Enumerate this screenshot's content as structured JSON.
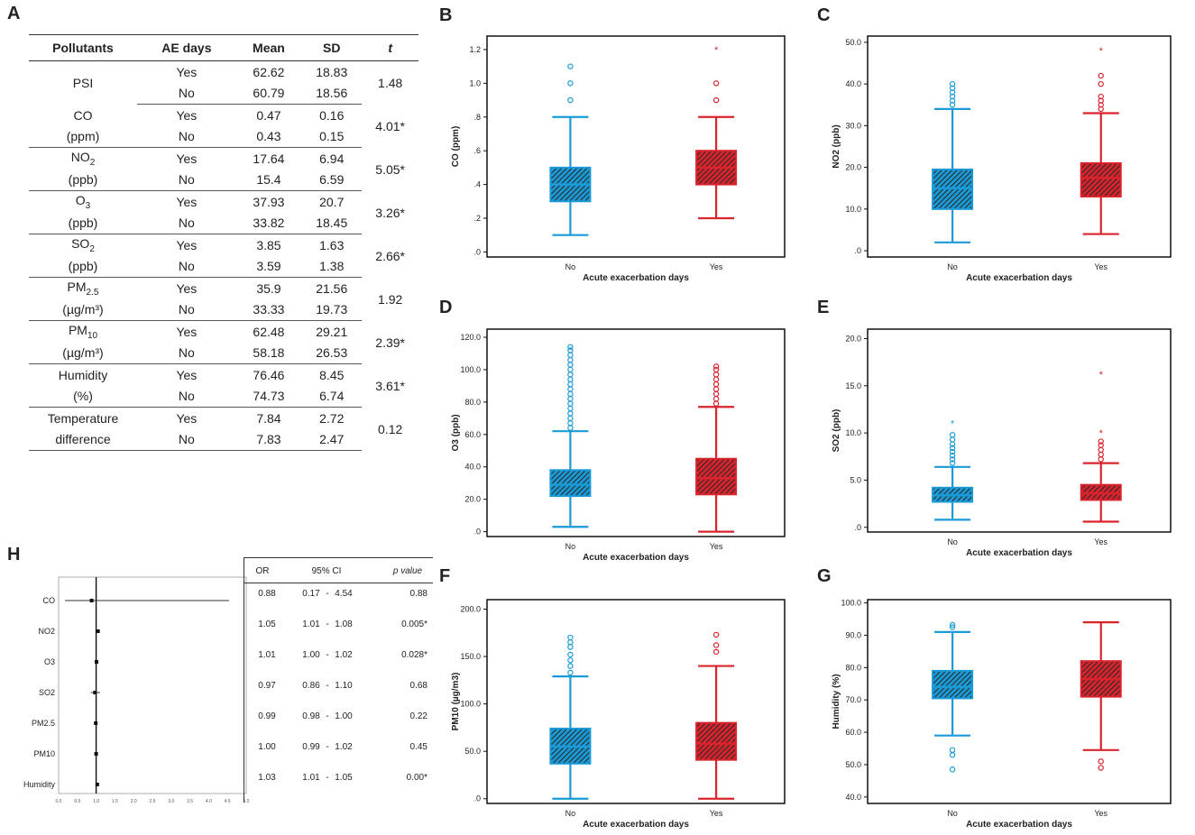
{
  "panels": {
    "A": "A",
    "B": "B",
    "C": "C",
    "D": "D",
    "E": "E",
    "F": "F",
    "G": "G",
    "H": "H"
  },
  "table": {
    "headers": [
      "Pollutants",
      "AE days",
      "Mean",
      "SD",
      "t"
    ],
    "rows": [
      {
        "name1": "PSI",
        "name2": "",
        "yes": [
          "Yes",
          "62.62",
          "18.83"
        ],
        "no": [
          "No",
          "60.79",
          "18.56"
        ],
        "t": "1.48"
      },
      {
        "name1": "CO",
        "name2": "(ppm)",
        "yes": [
          "Yes",
          "0.47",
          "0.16"
        ],
        "no": [
          "No",
          "0.43",
          "0.15"
        ],
        "t": "4.01*"
      },
      {
        "name1": "NO",
        "sub1": "2",
        "name2": "(ppb)",
        "yes": [
          "Yes",
          "17.64",
          "6.94"
        ],
        "no": [
          "No",
          "15.4",
          "6.59"
        ],
        "t": "5.05*"
      },
      {
        "name1": "O",
        "sub1": "3",
        "name2": "(ppb)",
        "yes": [
          "Yes",
          "37.93",
          "20.7"
        ],
        "no": [
          "No",
          "33.82",
          "18.45"
        ],
        "t": "3.26*"
      },
      {
        "name1": "SO",
        "sub1": "2",
        "name2": "(ppb)",
        "yes": [
          "Yes",
          "3.85",
          "1.63"
        ],
        "no": [
          "No",
          "3.59",
          "1.38"
        ],
        "t": "2.66*"
      },
      {
        "name1": "PM",
        "sub1": "2.5",
        "name2": "(µg/m³)",
        "yes": [
          "Yes",
          "35.9",
          "21.56"
        ],
        "no": [
          "No",
          "33.33",
          "19.73"
        ],
        "t": "1.92"
      },
      {
        "name1": "PM",
        "sub1": "10",
        "name2": "(µg/m³)",
        "yes": [
          "Yes",
          "62.48",
          "29.21"
        ],
        "no": [
          "No",
          "58.18",
          "26.53"
        ],
        "t": "2.39*"
      },
      {
        "name1": "Humidity",
        "name2": "(%)",
        "yes": [
          "Yes",
          "76.46",
          "8.45"
        ],
        "no": [
          "No",
          "74.73",
          "6.74"
        ],
        "t": "3.61*"
      },
      {
        "name1": "Temperature",
        "name2": "difference",
        "yes": [
          "Yes",
          "7.84",
          "2.72"
        ],
        "no": [
          "No",
          "7.83",
          "2.47"
        ],
        "t": "0.12"
      }
    ]
  },
  "colors": {
    "no": "#1a9ad6",
    "yes": "#d9232d",
    "box_fill": "#2a2a2a"
  },
  "chart_data": [
    {
      "id": "B",
      "type": "boxplot",
      "ylabel": "CO (ppm)",
      "xlabel": "Acute exacerbation days",
      "categories": [
        "No",
        "Yes"
      ],
      "yticks": [
        ".0",
        ".2",
        ".4",
        ".6",
        ".8",
        "1.0",
        "1.2"
      ],
      "ytick_values": [
        0,
        0.2,
        0.4,
        0.6,
        0.8,
        1.0,
        1.2
      ],
      "ylim": [
        -0.03,
        1.28
      ],
      "boxes": [
        {
          "min": 0.1,
          "q1": 0.3,
          "median": 0.4,
          "q3": 0.5,
          "max": 0.8,
          "outliers": [
            0.9,
            1.0,
            1.1
          ],
          "extremes": []
        },
        {
          "min": 0.2,
          "q1": 0.4,
          "median": 0.5,
          "q3": 0.6,
          "max": 0.8,
          "outliers": [
            0.9,
            1.0
          ],
          "extremes": [
            1.2
          ]
        }
      ]
    },
    {
      "id": "C",
      "type": "boxplot",
      "ylabel": "NO2 (ppb)",
      "xlabel": "Acute exacerbation days",
      "categories": [
        "No",
        "Yes"
      ],
      "yticks": [
        ".0",
        "10.0",
        "20.0",
        "30.0",
        "40.0",
        "50.0"
      ],
      "ytick_values": [
        0,
        10,
        20,
        30,
        40,
        50
      ],
      "ylim": [
        -1.5,
        51.5
      ],
      "boxes": [
        {
          "min": 2,
          "q1": 10,
          "median": 15,
          "q3": 19.5,
          "max": 34,
          "outliers": [
            35,
            36,
            37,
            38,
            39,
            40
          ],
          "extremes": []
        },
        {
          "min": 4,
          "q1": 13,
          "median": 17.5,
          "q3": 21,
          "max": 33,
          "outliers": [
            34,
            35,
            36,
            37,
            40,
            42
          ],
          "extremes": [
            48
          ]
        }
      ]
    },
    {
      "id": "D",
      "type": "boxplot",
      "ylabel": "O3 (ppb)",
      "xlabel": "Acute exacerbation days",
      "categories": [
        "No",
        "Yes"
      ],
      "yticks": [
        ".0",
        "20.0",
        "40.0",
        "60.0",
        "80.0",
        "100.0",
        "120.0"
      ],
      "ytick_values": [
        0,
        20,
        40,
        60,
        80,
        100,
        120
      ],
      "ylim": [
        -3,
        125
      ],
      "boxes": [
        {
          "min": 3,
          "q1": 22,
          "median": 29,
          "q3": 38,
          "max": 62,
          "outliers": [
            64,
            67,
            70,
            73,
            76,
            79,
            82,
            85,
            88,
            91,
            94,
            97,
            100,
            103,
            106,
            109,
            112,
            114
          ],
          "extremes": []
        },
        {
          "min": 0,
          "q1": 23,
          "median": 33,
          "q3": 45,
          "max": 77,
          "outliers": [
            79,
            82,
            85,
            88,
            91,
            94,
            97,
            100,
            102
          ],
          "extremes": []
        }
      ]
    },
    {
      "id": "E",
      "type": "boxplot",
      "ylabel": "SO2 (ppb)",
      "xlabel": "Acute exacerbation days",
      "categories": [
        "No",
        "Yes"
      ],
      "yticks": [
        ".0",
        "5.0",
        "10.0",
        "15.0",
        "20.0"
      ],
      "ytick_values": [
        0,
        5,
        10,
        15,
        20
      ],
      "ylim": [
        -0.5,
        21
      ],
      "boxes": [
        {
          "min": 0.8,
          "q1": 2.7,
          "median": 3.4,
          "q3": 4.2,
          "max": 6.4,
          "outliers": [
            6.8,
            7.2,
            7.6,
            8.0,
            8.4,
            8.8,
            9.3,
            9.8
          ],
          "extremes": [
            11.0
          ]
        },
        {
          "min": 0.6,
          "q1": 2.9,
          "median": 3.6,
          "q3": 4.5,
          "max": 6.8,
          "outliers": [
            7.2,
            7.7,
            8.2,
            8.7,
            9.1
          ],
          "extremes": [
            10.0,
            16.2
          ]
        }
      ]
    },
    {
      "id": "F",
      "type": "boxplot",
      "ylabel": "PM10 (µg/m3)",
      "xlabel": "Acute exacerbation days",
      "categories": [
        "No",
        "Yes"
      ],
      "yticks": [
        ".0",
        "50.0",
        "100.0",
        "150.0",
        "200.0"
      ],
      "ytick_values": [
        0,
        50,
        100,
        150,
        200
      ],
      "ylim": [
        -5,
        210
      ],
      "boxes": [
        {
          "min": 0,
          "q1": 37,
          "median": 55,
          "q3": 74,
          "max": 129,
          "outliers": [
            133,
            140,
            146,
            152,
            160,
            165,
            170
          ],
          "extremes": []
        },
        {
          "min": 0,
          "q1": 41,
          "median": 58,
          "q3": 80,
          "max": 140,
          "outliers": [
            155,
            162,
            173
          ],
          "extremes": []
        }
      ]
    },
    {
      "id": "G",
      "type": "boxplot",
      "ylabel": "Humidity (%)",
      "xlabel": "Acute exacerbation days",
      "categories": [
        "No",
        "Yes"
      ],
      "yticks": [
        "40.0",
        "50.0",
        "60.0",
        "70.0",
        "80.0",
        "90.0",
        "100.0"
      ],
      "ytick_values": [
        40,
        50,
        60,
        70,
        80,
        90,
        100
      ],
      "ylim": [
        38,
        101
      ],
      "boxes": [
        {
          "min": 59,
          "q1": 70.5,
          "median": 74,
          "q3": 79,
          "max": 91,
          "outliers": [
            92.5,
            93.2,
            48.5,
            53,
            54.5
          ],
          "extremes": []
        },
        {
          "min": 54.5,
          "q1": 71,
          "median": 76.5,
          "q3": 82,
          "max": 94,
          "outliers": [
            49,
            51
          ],
          "extremes": []
        }
      ]
    },
    {
      "id": "H",
      "type": "forest",
      "xticks": [
        "0.0",
        "0.5",
        "1.0",
        "1.5",
        "2.0",
        "2.5",
        "3.0",
        "3.5",
        "4.0",
        "4.5",
        "5.0"
      ],
      "xtick_values": [
        0,
        0.5,
        1,
        1.5,
        2,
        2.5,
        3,
        3.5,
        4,
        4.5,
        5
      ],
      "xlim": [
        0,
        5
      ],
      "headers": [
        "OR",
        "95% CI",
        "p value"
      ],
      "rows": [
        {
          "label": "CO",
          "or": "0.88",
          "lo": "0.17",
          "hi": "4.54",
          "p": "0.88",
          "or_v": 0.88,
          "lo_v": 0.17,
          "hi_v": 4.54
        },
        {
          "label": "NO2",
          "or": "1.05",
          "lo": "1.01",
          "hi": "1.08",
          "p": "0.005*",
          "or_v": 1.05,
          "lo_v": 1.01,
          "hi_v": 1.08
        },
        {
          "label": "O3",
          "or": "1.01",
          "lo": "1.00",
          "hi": "1.02",
          "p": "0.028*",
          "or_v": 1.01,
          "lo_v": 1.0,
          "hi_v": 1.02
        },
        {
          "label": "SO2",
          "or": "0.97",
          "lo": "0.86",
          "hi": "1.10",
          "p": "0.68",
          "or_v": 0.97,
          "lo_v": 0.86,
          "hi_v": 1.1
        },
        {
          "label": "PM2.5",
          "or": "0.99",
          "lo": "0.98",
          "hi": "1.00",
          "p": "0.22",
          "or_v": 0.99,
          "lo_v": 0.98,
          "hi_v": 1.0
        },
        {
          "label": "PM10",
          "or": "1.00",
          "lo": "0.99",
          "hi": "1.02",
          "p": "0.45",
          "or_v": 1.0,
          "lo_v": 0.99,
          "hi_v": 1.02
        },
        {
          "label": "Humidity",
          "or": "1.03",
          "lo": "1.01",
          "hi": "1.05",
          "p": "0.00*",
          "or_v": 1.03,
          "lo_v": 1.01,
          "hi_v": 1.05
        }
      ]
    }
  ]
}
